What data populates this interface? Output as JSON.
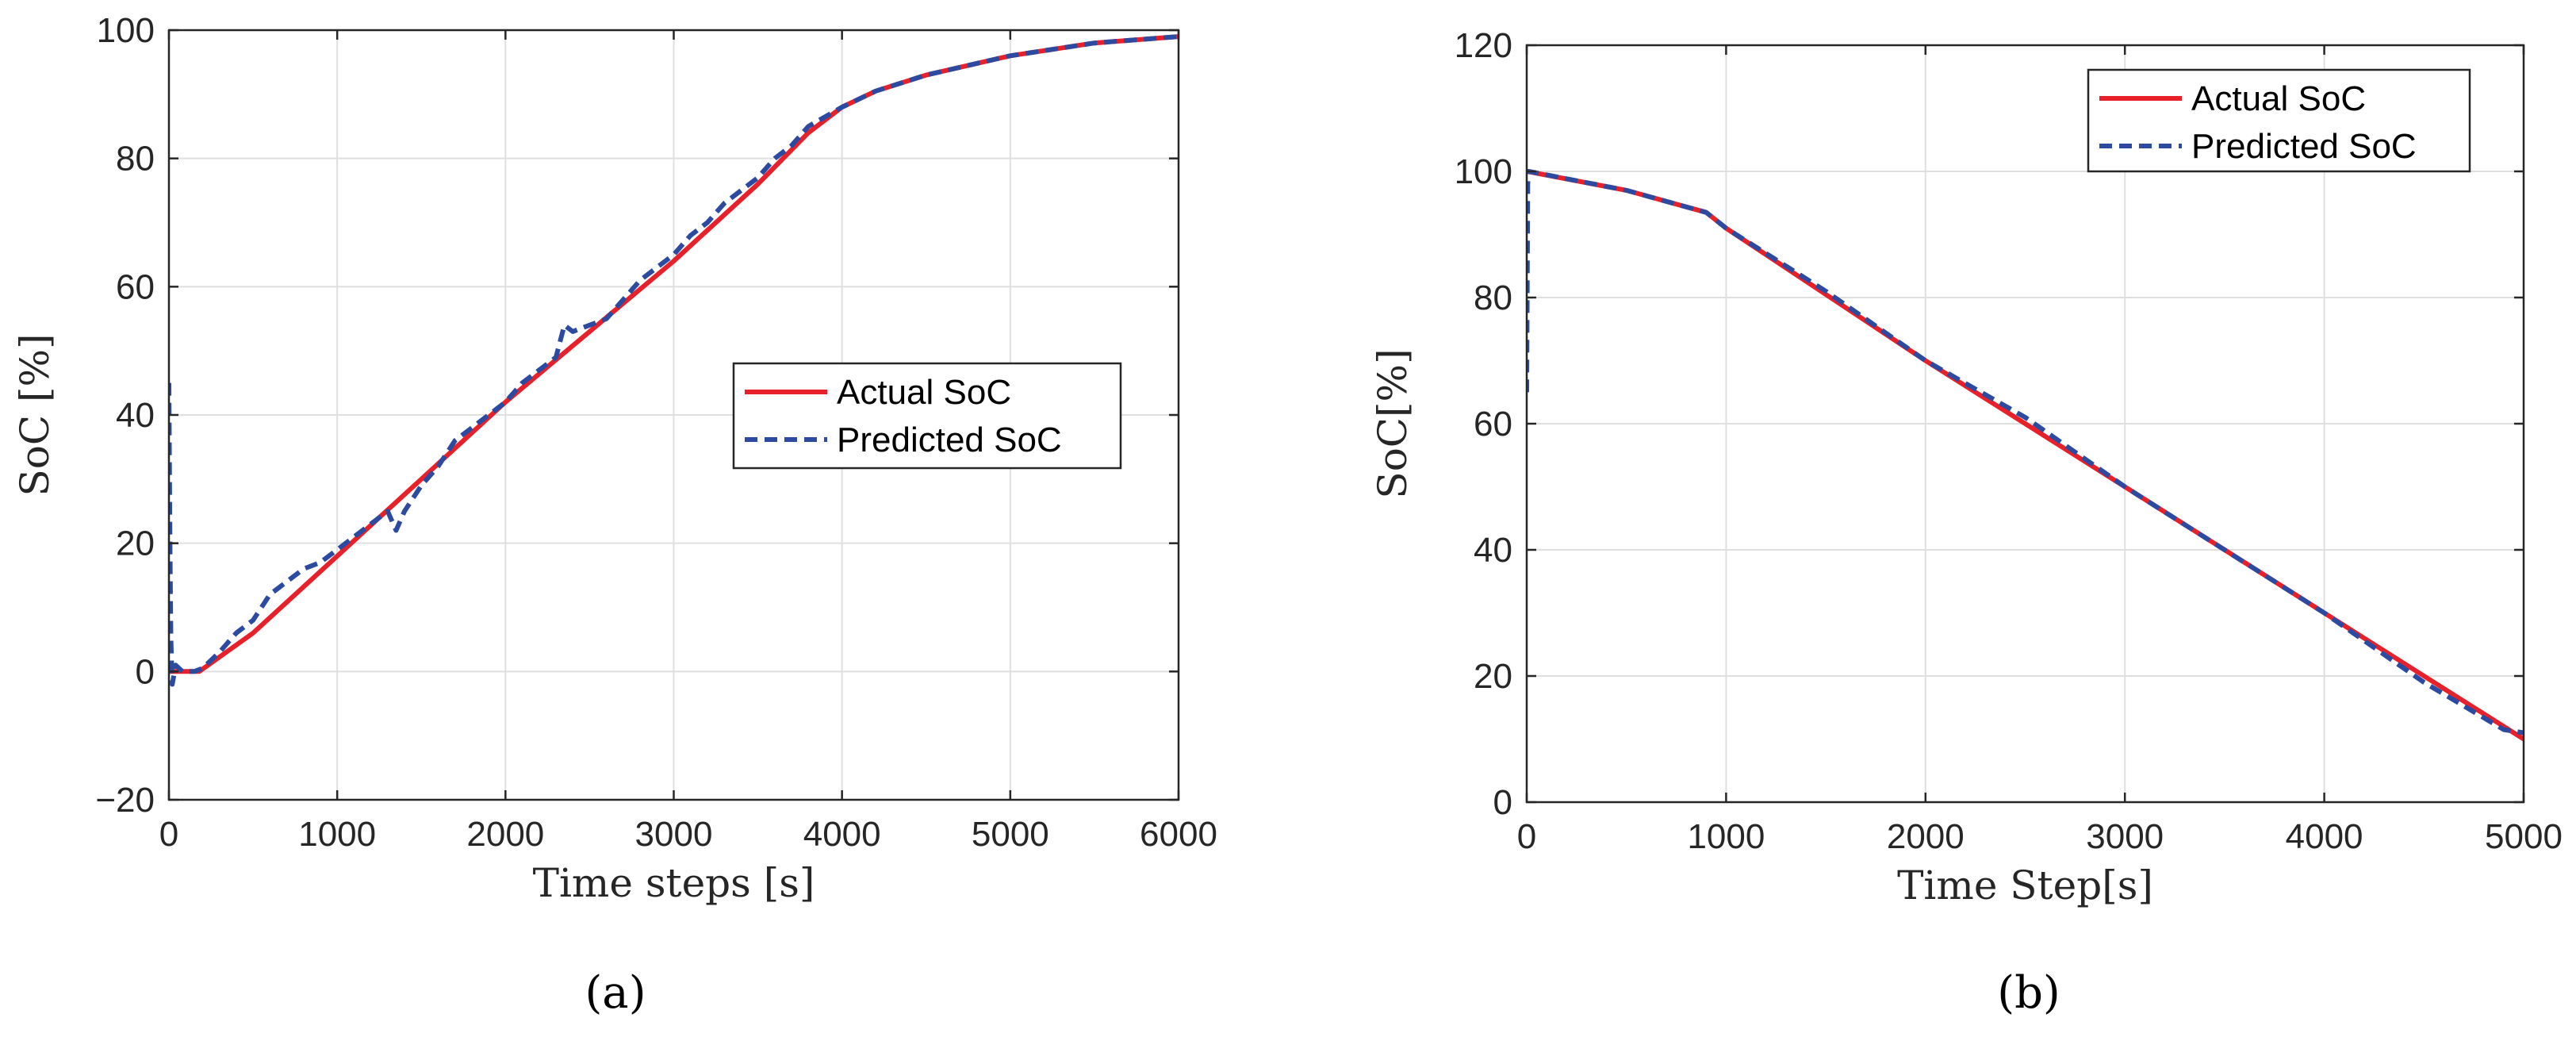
{
  "chart_data": [
    {
      "type": "line",
      "panel_label": "(a)",
      "xlabel": "Time steps [s]",
      "ylabel": "SoC [%]",
      "xlim": [
        0,
        6000
      ],
      "ylim": [
        -20,
        100
      ],
      "xticks": [
        0,
        1000,
        2000,
        3000,
        4000,
        5000,
        6000
      ],
      "yticks": [
        -20,
        0,
        20,
        40,
        60,
        80,
        100
      ],
      "ytick_labels": [
        "−20",
        "0",
        "20",
        "40",
        "60",
        "80",
        "100"
      ],
      "legend_position": "center-right",
      "grid": true,
      "series": [
        {
          "name": "Actual SoC",
          "style": "solid",
          "color": "#e8202a",
          "x": [
            0,
            180,
            500,
            1000,
            1500,
            2000,
            2500,
            3000,
            3500,
            3800,
            4000,
            4200,
            4500,
            5000,
            5500,
            6000
          ],
          "y": [
            0,
            0,
            6,
            18,
            30,
            42,
            53,
            64,
            76,
            84,
            88,
            90.5,
            93,
            96,
            98,
            99
          ]
        },
        {
          "name": "Predicted SoC",
          "style": "dashed",
          "color": "#2b4aa0",
          "x": [
            0,
            6,
            12,
            20,
            40,
            80,
            150,
            200,
            300,
            400,
            500,
            600,
            700,
            800,
            900,
            1000,
            1100,
            1200,
            1300,
            1350,
            1400,
            1500,
            1600,
            1700,
            1800,
            1900,
            2000,
            2100,
            2200,
            2300,
            2350,
            2400,
            2500,
            2600,
            2700,
            2800,
            2900,
            3000,
            3100,
            3200,
            3300,
            3400,
            3500,
            3600,
            3700,
            3800,
            3900,
            4000,
            4200,
            4500,
            5000,
            5500,
            6000
          ],
          "y": [
            45,
            20,
            5,
            -2,
            1,
            0,
            0,
            0.5,
            3,
            6,
            8,
            12,
            14,
            16,
            17,
            19,
            21,
            23,
            25,
            22,
            25,
            29,
            32,
            36,
            38,
            40,
            42,
            45,
            47,
            49,
            54,
            53,
            54,
            55,
            58,
            61,
            63,
            65,
            68,
            70,
            73,
            75,
            77,
            80,
            82,
            85,
            86.5,
            88,
            90.5,
            93,
            96,
            98,
            99
          ]
        }
      ]
    },
    {
      "type": "line",
      "panel_label": "(b)",
      "xlabel": "Time Step[s]",
      "ylabel": "SoC[%]",
      "xlim": [
        0,
        5000
      ],
      "ylim": [
        0,
        120
      ],
      "xticks": [
        0,
        1000,
        2000,
        3000,
        4000,
        5000
      ],
      "yticks": [
        0,
        20,
        40,
        60,
        80,
        100,
        120
      ],
      "ytick_labels": [
        "0",
        "20",
        "40",
        "60",
        "80",
        "100",
        "120"
      ],
      "legend_position": "top-right",
      "grid": true,
      "series": [
        {
          "name": "Actual SoC",
          "style": "solid",
          "color": "#e8202a",
          "x": [
            0,
            500,
            900,
            1000,
            2000,
            3000,
            4000,
            5000
          ],
          "y": [
            100,
            97,
            93.5,
            91,
            70,
            50,
            30,
            10
          ]
        },
        {
          "name": "Predicted SoC",
          "style": "dashed",
          "color": "#2b4aa0",
          "x": [
            0,
            5,
            10,
            500,
            900,
            1000,
            1500,
            2000,
            2500,
            3000,
            3500,
            4000,
            4500,
            4900,
            5000
          ],
          "y": [
            65,
            98,
            100,
            97,
            93.5,
            91,
            81,
            70,
            61,
            50,
            40,
            30,
            19,
            11.5,
            11
          ]
        }
      ]
    }
  ]
}
